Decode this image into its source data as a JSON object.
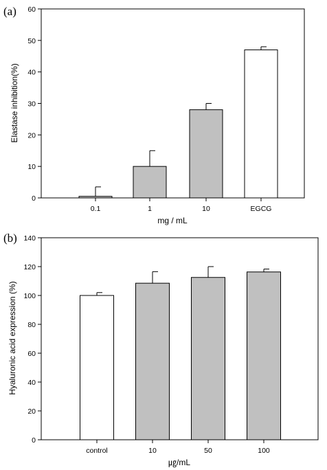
{
  "chart_data": [
    {
      "panel": "(a)",
      "type": "bar",
      "title": "",
      "categories": [
        "0.1",
        "1",
        "10",
        "EGCG"
      ],
      "values": [
        0.5,
        10,
        28,
        47
      ],
      "errors": [
        3,
        5,
        2,
        1
      ],
      "bar_colors": [
        "#c0c0c0",
        "#c0c0c0",
        "#c0c0c0",
        "#ffffff"
      ],
      "xlabel": "mg / mL",
      "ylabel": "Elastase inhibition(%)",
      "ylim": [
        0,
        60
      ],
      "yticks": [
        0,
        10,
        20,
        30,
        40,
        50,
        60
      ],
      "grid": false
    },
    {
      "panel": "(b)",
      "type": "bar",
      "title": "",
      "categories": [
        "control",
        "10",
        "50",
        "100"
      ],
      "values": [
        100,
        108.5,
        112.5,
        116.3
      ],
      "errors": [
        2,
        8,
        7.5,
        2
      ],
      "bar_colors": [
        "#ffffff",
        "#c0c0c0",
        "#c0c0c0",
        "#c0c0c0"
      ],
      "xlabel": "㎍/mL",
      "ylabel": "Hyaluronic acid expression (%)",
      "ylim": [
        0,
        140
      ],
      "yticks": [
        0,
        20,
        40,
        60,
        80,
        100,
        120,
        140
      ],
      "grid": false
    }
  ]
}
